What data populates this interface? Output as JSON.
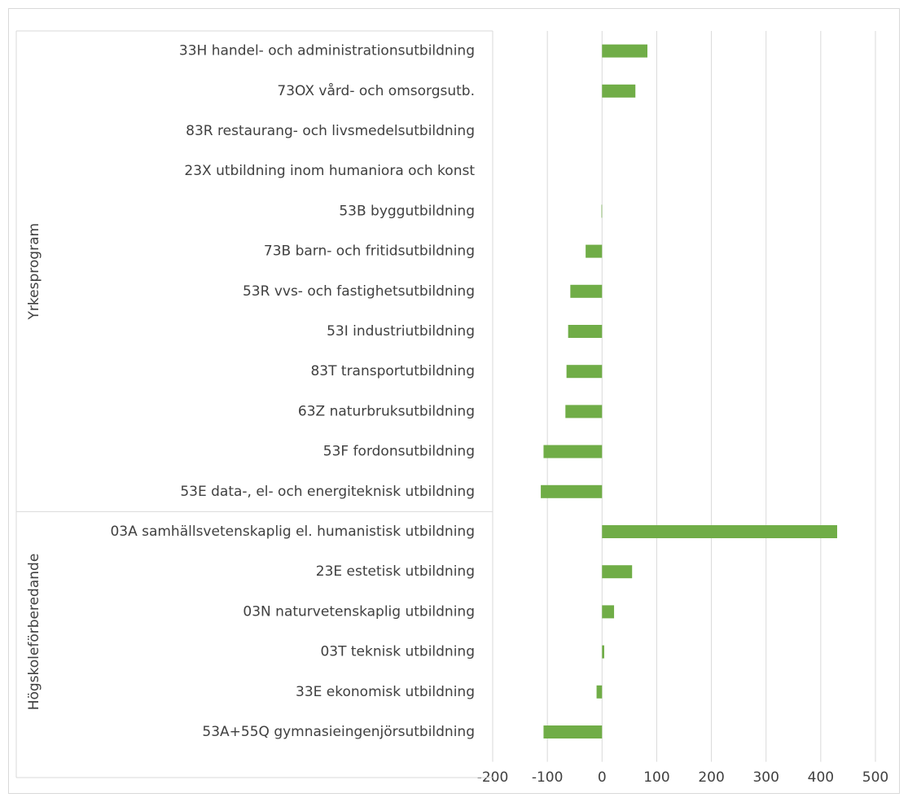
{
  "chart_data": {
    "type": "barh",
    "color": "#70ad47",
    "grid": true,
    "groups": [
      {
        "name": "Yrkesprogram",
        "categories": [
          "33H handel- och administrationsutbildning",
          "73OX vård- och omsorgsutb.",
          "83R restaurang- och livsmedelsutbildning",
          "23X utbildning inom humaniora och konst",
          "53B byggutbildning",
          "73B barn- och fritidsutbildning",
          "53R vvs- och fastighetsutbildning",
          "53I industriutbildning",
          "83T transportutbildning",
          "63Z naturbruksutbildning",
          "53F fordonsutbildning",
          "53E data-, el- och energiteknisk utbildning"
        ]
      },
      {
        "name": "Högskoleförberedande",
        "categories": [
          "03A samhällsvetenskaplig el. humanistisk utbildning",
          "23E estetisk utbildning",
          "03N naturvetenskaplig utbildning",
          "03T teknisk utbildning",
          "33E ekonomisk utbildning",
          "53A+55Q gymnasieingenjörsutbildning"
        ]
      }
    ],
    "values": [
      83,
      61,
      0,
      0,
      -1,
      -30,
      -58,
      -62,
      -65,
      -67,
      -107,
      -112,
      430,
      55,
      22,
      4,
      -10,
      -107
    ],
    "xlim": [
      -200,
      500
    ],
    "xticks": [
      -200,
      -100,
      0,
      100,
      200,
      300,
      400,
      500
    ]
  }
}
